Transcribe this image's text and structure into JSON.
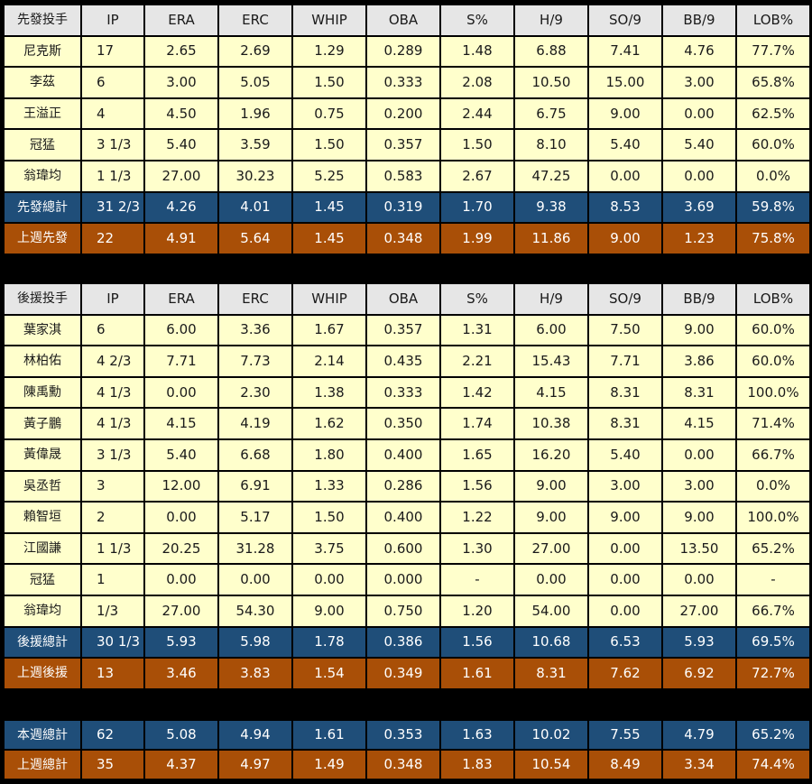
{
  "columns": [
    "IP",
    "ERA",
    "ERC",
    "WHIP",
    "OBA",
    "S%",
    "H/9",
    "SO/9",
    "BB/9",
    "LOB%"
  ],
  "starters": {
    "header": "先發投手",
    "rows": [
      [
        "尼克斯",
        "17",
        "2.65",
        "2.69",
        "1.29",
        "0.289",
        "1.48",
        "6.88",
        "7.41",
        "4.76",
        "77.7%"
      ],
      [
        "李茲",
        "6",
        "3.00",
        "5.05",
        "1.50",
        "0.333",
        "2.08",
        "10.50",
        "15.00",
        "3.00",
        "65.8%"
      ],
      [
        "王溢正",
        "4",
        "4.50",
        "1.96",
        "0.75",
        "0.200",
        "2.44",
        "6.75",
        "9.00",
        "0.00",
        "62.5%"
      ],
      [
        "冠猛",
        "3 1/3",
        "5.40",
        "3.59",
        "1.50",
        "0.357",
        "1.50",
        "8.10",
        "5.40",
        "5.40",
        "60.0%"
      ],
      [
        "翁瑋均",
        "1 1/3",
        "27.00",
        "30.23",
        "5.25",
        "0.583",
        "2.67",
        "47.25",
        "0.00",
        "0.00",
        "0.0%"
      ]
    ],
    "total": [
      "先發總計",
      "31 2/3",
      "4.26",
      "4.01",
      "1.45",
      "0.319",
      "1.70",
      "9.38",
      "8.53",
      "3.69",
      "59.8%"
    ],
    "last_week": [
      "上週先發",
      "22",
      "4.91",
      "5.64",
      "1.45",
      "0.348",
      "1.99",
      "11.86",
      "9.00",
      "1.23",
      "75.8%"
    ]
  },
  "relievers": {
    "header": "後援投手",
    "rows": [
      [
        "葉家淇",
        "6",
        "6.00",
        "3.36",
        "1.67",
        "0.357",
        "1.31",
        "6.00",
        "7.50",
        "9.00",
        "60.0%"
      ],
      [
        "林柏佑",
        "4 2/3",
        "7.71",
        "7.73",
        "2.14",
        "0.435",
        "2.21",
        "15.43",
        "7.71",
        "3.86",
        "60.0%"
      ],
      [
        "陳禹勳",
        "4 1/3",
        "0.00",
        "2.30",
        "1.38",
        "0.333",
        "1.42",
        "4.15",
        "8.31",
        "8.31",
        "100.0%"
      ],
      [
        "黃子鵬",
        "4 1/3",
        "4.15",
        "4.19",
        "1.62",
        "0.350",
        "1.74",
        "10.38",
        "8.31",
        "4.15",
        "71.4%"
      ],
      [
        "黃偉晟",
        "3 1/3",
        "5.40",
        "6.68",
        "1.80",
        "0.400",
        "1.65",
        "16.20",
        "5.40",
        "0.00",
        "66.7%"
      ],
      [
        "吳丞哲",
        "3",
        "12.00",
        "6.91",
        "1.33",
        "0.286",
        "1.56",
        "9.00",
        "3.00",
        "3.00",
        "0.0%"
      ],
      [
        "賴智垣",
        "2",
        "0.00",
        "5.17",
        "1.50",
        "0.400",
        "1.22",
        "9.00",
        "9.00",
        "9.00",
        "100.0%"
      ],
      [
        "江國謙",
        "1 1/3",
        "20.25",
        "31.28",
        "3.75",
        "0.600",
        "1.30",
        "27.00",
        "0.00",
        "13.50",
        "65.2%"
      ],
      [
        "冠猛",
        "1",
        "0.00",
        "0.00",
        "0.00",
        "0.000",
        "-",
        "0.00",
        "0.00",
        "0.00",
        "-"
      ],
      [
        "翁瑋均",
        "1/3",
        "27.00",
        "54.30",
        "9.00",
        "0.750",
        "1.20",
        "54.00",
        "0.00",
        "27.00",
        "66.7%"
      ]
    ],
    "total": [
      "後援總計",
      "30 1/3",
      "5.93",
      "5.98",
      "1.78",
      "0.386",
      "1.56",
      "10.68",
      "6.53",
      "5.93",
      "69.5%"
    ],
    "last_week": [
      "上週後援",
      "13",
      "3.46",
      "3.83",
      "1.54",
      "0.349",
      "1.61",
      "8.31",
      "7.62",
      "6.92",
      "72.7%"
    ]
  },
  "summary": {
    "this_week": [
      "本週總計",
      "62",
      "5.08",
      "4.94",
      "1.61",
      "0.353",
      "1.63",
      "10.02",
      "7.55",
      "4.79",
      "65.2%"
    ],
    "last_week": [
      "上週總計",
      "35",
      "4.37",
      "4.97",
      "1.49",
      "0.348",
      "1.83",
      "10.54",
      "8.49",
      "3.34",
      "74.4%"
    ]
  },
  "colors": {
    "background": "#000000",
    "header_row": "#e6e6e6",
    "data_row": "#ffffcc",
    "total_row": "#1f4e79",
    "last_week_row": "#a94f07",
    "total_text": "#ffffff"
  }
}
